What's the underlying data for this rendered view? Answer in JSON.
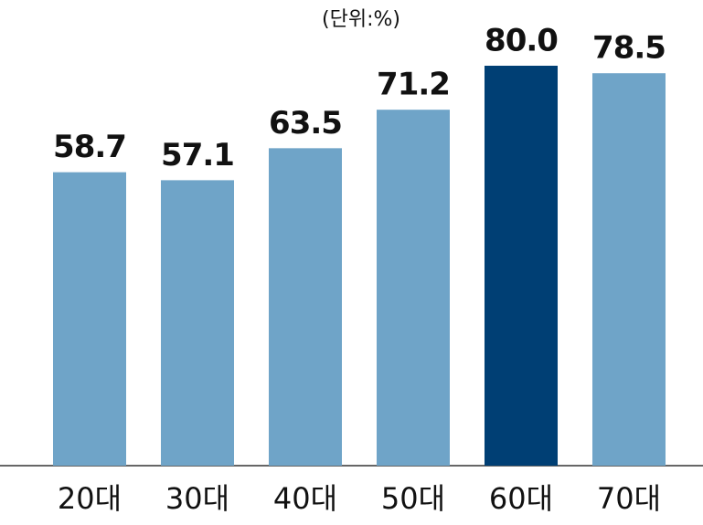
{
  "chart_data": {
    "type": "bar",
    "annotation": "(단위:%)",
    "categories": [
      "20대",
      "30대",
      "40대",
      "50대",
      "60대",
      "70대"
    ],
    "values": [
      58.7,
      57.1,
      63.5,
      71.2,
      80.0,
      78.5
    ],
    "value_labels": [
      "58.7",
      "57.1",
      "63.5",
      "71.2",
      "80.0",
      "78.5"
    ],
    "colors": [
      "#6fa4c8",
      "#6fa4c8",
      "#6fa4c8",
      "#6fa4c8",
      "#003f74",
      "#6fa4c8"
    ]
  }
}
